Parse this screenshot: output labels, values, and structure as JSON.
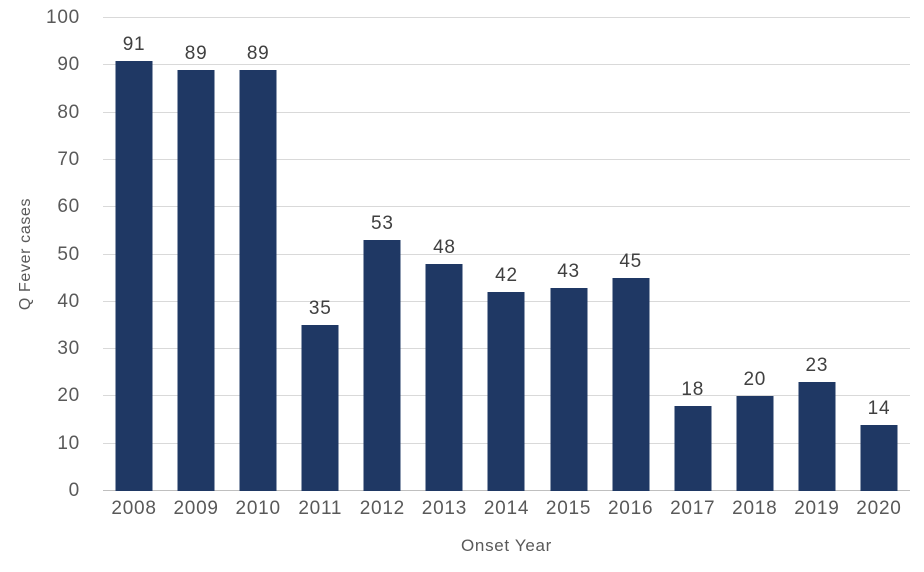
{
  "chart_data": {
    "type": "bar",
    "categories": [
      "2008",
      "2009",
      "2010",
      "2011",
      "2012",
      "2013",
      "2014",
      "2015",
      "2016",
      "2017",
      "2018",
      "2019",
      "2020"
    ],
    "values": [
      91,
      89,
      89,
      35,
      53,
      48,
      42,
      43,
      45,
      18,
      20,
      23,
      14
    ],
    "title": "",
    "xlabel": "Onset Year",
    "ylabel": "Q Fever cases",
    "ylim": [
      0,
      100
    ],
    "ytick_step": 10,
    "ytick_labels": [
      "0",
      "10",
      "20",
      "30",
      "40",
      "50",
      "60",
      "70",
      "80",
      "90",
      "100"
    ],
    "grid": true,
    "legend": false,
    "data_labels": true,
    "colors": {
      "bar": "#1F3864",
      "gridline": "#D9D9D9",
      "baseline": "#BFBFBF",
      "axis_text": "#595959",
      "data_label_text": "#404040"
    }
  }
}
